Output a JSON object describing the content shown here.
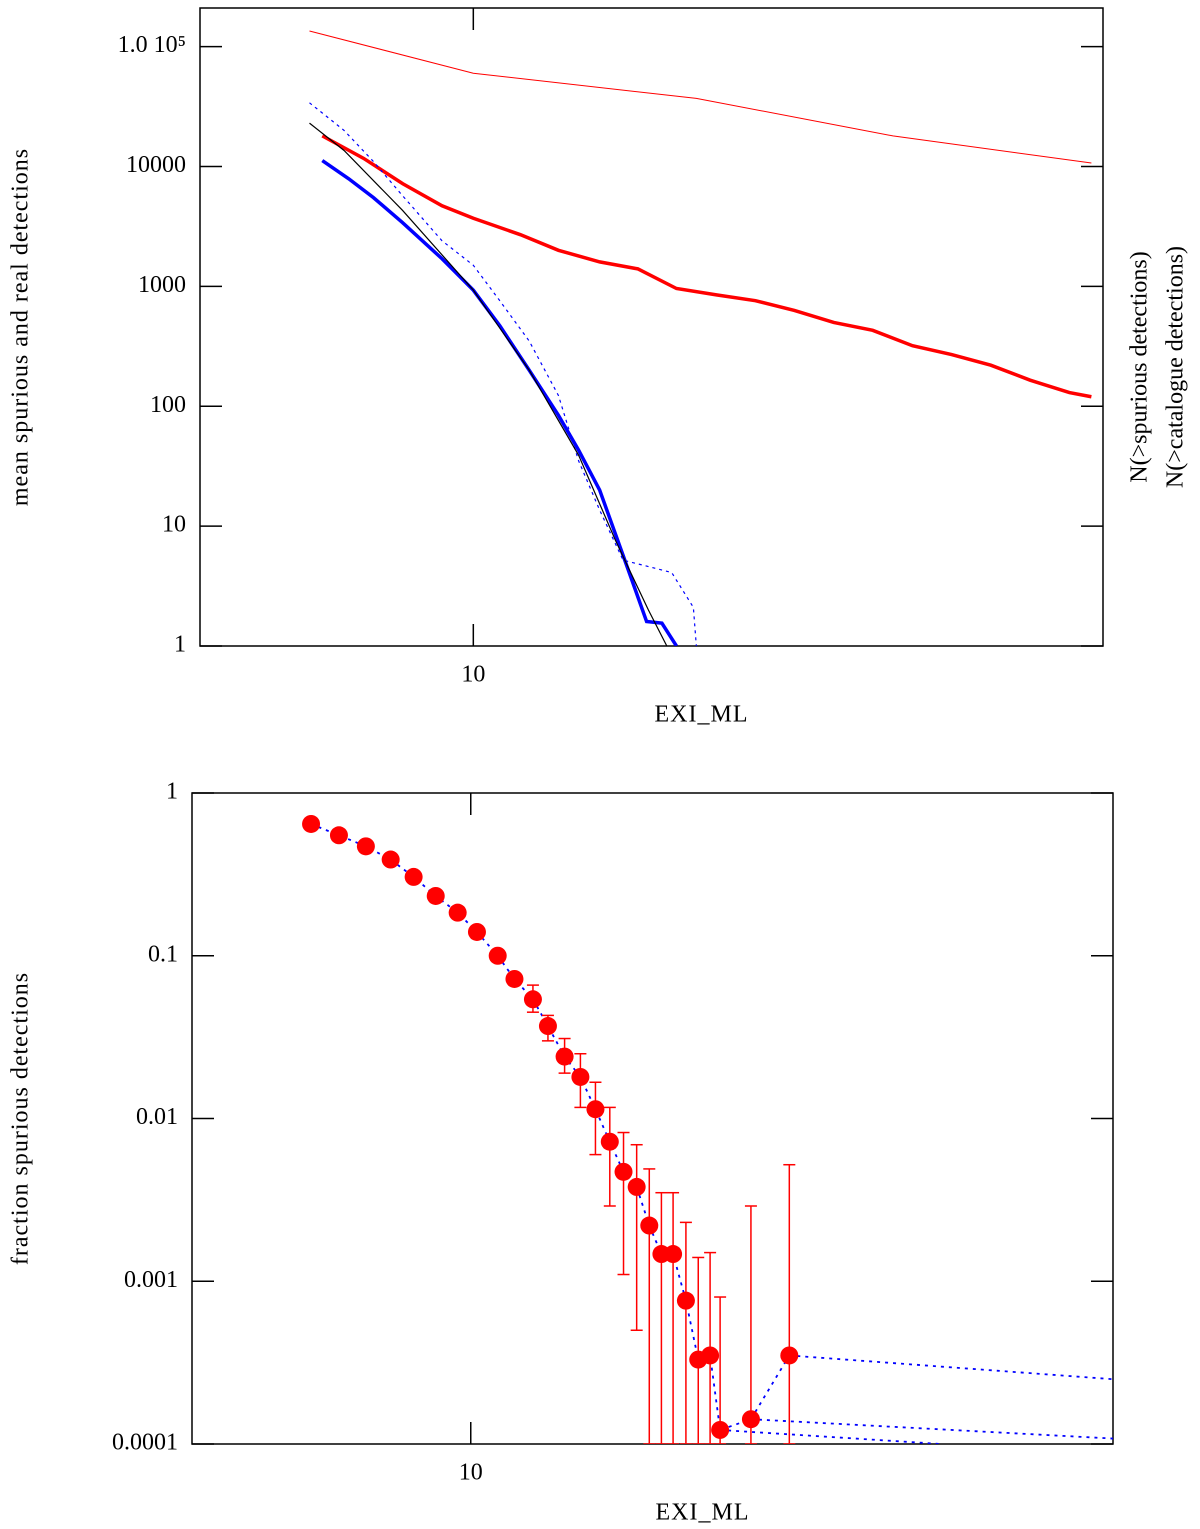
{
  "chart_data": [
    {
      "type": "line",
      "xlabel": "EXI_ML",
      "ylabel": "mean spurious and real detections",
      "side_labels": [
        {
          "text": "N(>spurious detections)",
          "color": "#0000ff"
        },
        {
          "text": "N(>catalogue detections)",
          "color": "#ff0000"
        }
      ],
      "log_x": true,
      "log_y": true,
      "xlim": [
        4.1,
        78
      ],
      "ylim": [
        1,
        210000
      ],
      "xticks": [
        10
      ],
      "yticks": [
        1,
        10,
        100,
        1000,
        10000,
        {
          "value": 100000,
          "label": "1.0 10⁵"
        }
      ],
      "series": [
        {
          "color": "#ff0000",
          "width": 1,
          "dash": "none",
          "x": [
            5.86,
            10,
            20.7,
            39.3,
            75.1
          ],
          "values": [
            135000,
            60000,
            37000,
            18000,
            10700
          ]
        },
        {
          "color": "#ff0000",
          "width": 3.5,
          "dash": "none",
          "x": [
            6.11,
            6.99,
            7.94,
            9.03,
            10,
            11.66,
            13.2,
            15.1,
            17.1,
            19.4,
            22.1,
            25.1,
            28.5,
            32.4,
            36.8,
            41.9,
            47.6,
            54.1,
            61.5,
            69.9,
            75.1
          ],
          "values": [
            18000,
            11700,
            7200,
            4700,
            3700,
            2700,
            2000,
            1600,
            1400,
            960,
            850,
            760,
            630,
            500,
            430,
            320,
            270,
            220,
            165,
            130,
            120
          ]
        },
        {
          "color": "#0000ff",
          "width": 3.5,
          "dash": "none",
          "x": [
            6.11,
            6.66,
            7.22,
            7.94,
            9.03,
            10,
            10.9,
            12.0,
            13.2,
            14.1,
            15.1,
            16.3,
            17.6,
            18.5,
            19.4
          ],
          "values": [
            11200,
            7900,
            5500,
            3400,
            1700,
            930,
            470,
            200,
            84,
            43,
            20,
            5.7,
            1.6,
            1.55,
            1
          ]
        },
        {
          "color": "#0000ff",
          "width": 1.2,
          "dash": "3 4",
          "x": [
            5.86,
            6.56,
            7.22,
            7.94,
            9.03,
            10,
            10.9,
            12.0,
            13.2,
            14.1,
            15.1,
            16.3,
            17.7,
            19.1,
            20.5,
            20.7
          ],
          "values": [
            34000,
            20000,
            11000,
            5700,
            2400,
            1500,
            760,
            350,
            123,
            35,
            13.6,
            5.2,
            4.6,
            4.1,
            2.1,
            1
          ]
        },
        {
          "color": "#000000",
          "width": 1.2,
          "dash": "none",
          "x": [
            5.86,
            6.56,
            7.94,
            10,
            12.0,
            14.1,
            15.9,
            17.7,
            18.8
          ],
          "values": [
            23000,
            13600,
            4300,
            930,
            200,
            39,
            7.6,
            2,
            1
          ]
        }
      ]
    },
    {
      "type": "scatter",
      "xlabel": "EXI_ML",
      "ylabel": "fraction spurious detections",
      "log_x": true,
      "log_y": true,
      "xlim": [
        4.1,
        78
      ],
      "ylim": [
        0.0001,
        1
      ],
      "xticks": [
        10
      ],
      "yticks": [
        0.0001,
        0.001,
        0.01,
        0.1,
        1
      ],
      "points": {
        "color": "#ff0000",
        "line_color": "#0000ff",
        "x": [
          6.0,
          6.56,
          7.15,
          7.74,
          8.33,
          8.94,
          9.59,
          10.2,
          10.9,
          11.5,
          12.2,
          12.8,
          13.5,
          14.2,
          14.9,
          15.6,
          16.3,
          17.0,
          17.7,
          18.4,
          19.1,
          19.9,
          20.7,
          21.5,
          22.2,
          24.5,
          27.7
        ],
        "values": [
          0.645,
          0.55,
          0.47,
          0.39,
          0.305,
          0.233,
          0.184,
          0.14,
          0.1,
          0.072,
          0.054,
          0.037,
          0.024,
          0.018,
          0.0114,
          0.0072,
          0.0047,
          0.0038,
          0.0022,
          0.00147,
          0.00147,
          0.00076,
          0.00033,
          0.00035,
          0.000122,
          0.000142,
          0.00035
        ],
        "y_low": [
          0.61,
          0.52,
          0.445,
          0.37,
          0.285,
          0.217,
          0.17,
          0.128,
          0.092,
          0.066,
          0.045,
          0.03,
          0.019,
          0.0117,
          0.006,
          0.0029,
          0.0011,
          0.0005,
          0.0001,
          0.0001,
          0.0001,
          0.0001,
          0.0001,
          0.0001,
          0.0001,
          0.0001,
          0.0001
        ],
        "y_high": [
          0.68,
          0.58,
          0.495,
          0.41,
          0.325,
          0.25,
          0.198,
          0.152,
          0.108,
          0.078,
          0.066,
          0.043,
          0.031,
          0.025,
          0.0167,
          0.0117,
          0.0082,
          0.0069,
          0.0049,
          0.0035,
          0.0035,
          0.0023,
          0.0014,
          0.0015,
          0.0008,
          0.0029,
          0.0052
        ]
      },
      "series": [
        {
          "color": "#0000ff",
          "width": 1.8,
          "dash": "3 5",
          "x": [
            27.7,
            78
          ],
          "values": [
            0.00035,
            0.00025
          ]
        },
        {
          "color": "#0000ff",
          "width": 1.8,
          "dash": "3 5",
          "x": [
            24.5,
            78
          ],
          "values": [
            0.000142,
            0.000108
          ]
        },
        {
          "color": "#0000ff",
          "width": 1.8,
          "dash": "3 5",
          "x": [
            22.2,
            45
          ],
          "values": [
            0.000122,
            0.0001
          ]
        }
      ]
    }
  ]
}
